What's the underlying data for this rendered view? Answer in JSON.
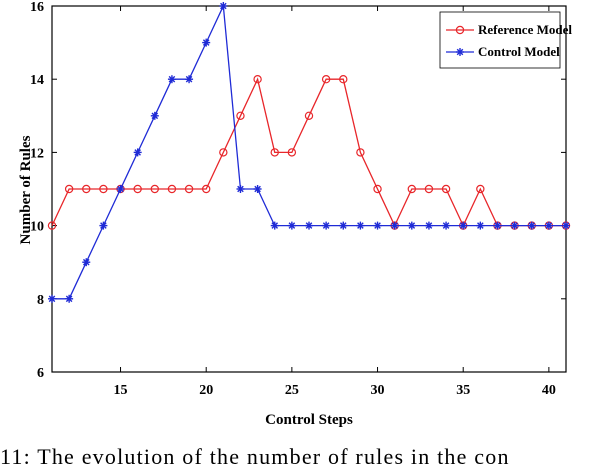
{
  "chart_data": {
    "type": "line",
    "xlabel": "Control Steps",
    "ylabel": "Number of Rules",
    "xlim": [
      11,
      41
    ],
    "ylim": [
      6,
      16
    ],
    "xticks": [
      15,
      20,
      25,
      30,
      35,
      40
    ],
    "yticks": [
      6,
      8,
      10,
      12,
      14,
      16
    ],
    "grid": false,
    "legend_position": "top-right",
    "x": [
      11,
      12,
      13,
      14,
      15,
      16,
      17,
      18,
      19,
      20,
      21,
      22,
      23,
      24,
      25,
      26,
      27,
      28,
      29,
      30,
      31,
      32,
      33,
      34,
      35,
      36,
      37,
      38,
      39,
      40,
      41
    ],
    "series": [
      {
        "name": "Reference Model",
        "color": "#e8262a",
        "marker": "circle",
        "values": [
          10,
          11,
          11,
          11,
          11,
          11,
          11,
          11,
          11,
          11,
          12,
          13,
          14,
          12,
          12,
          13,
          14,
          14,
          12,
          11,
          10,
          11,
          11,
          11,
          10,
          11,
          10,
          10,
          10,
          10,
          10
        ]
      },
      {
        "name": "Control Model",
        "color": "#1f2bd6",
        "marker": "asterisk",
        "values": [
          8,
          8,
          9,
          10,
          11,
          12,
          13,
          14,
          14,
          15,
          16,
          11,
          11,
          10,
          10,
          10,
          10,
          10,
          10,
          10,
          10,
          10,
          10,
          10,
          10,
          10,
          10,
          10,
          10,
          10,
          10
        ]
      }
    ]
  },
  "caption": "11: The evolution of the number of rules in the con"
}
